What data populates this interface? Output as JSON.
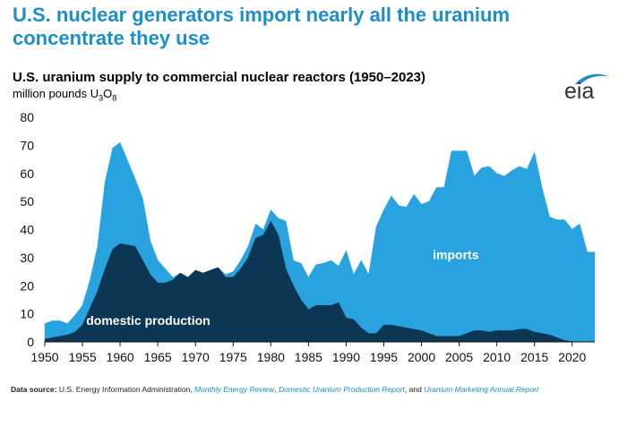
{
  "headline": "U.S. nuclear generators import nearly all the uranium concentrate they use",
  "logo": {
    "text": "eia"
  },
  "colors": {
    "headline": "#1a8fc9",
    "imports": "#29a3df",
    "domestic": "#0b3654",
    "axis": "#111111"
  },
  "source": {
    "label": "Data source:",
    "text": "U.S. Energy Information Administration,",
    "ref1": "Monthly Energy Review",
    "sep1": ",",
    "ref2": "Domestic Uranium Production Report",
    "sep2": ", and",
    "ref3": "Uranium Marketing Annual Report"
  },
  "chart_data": {
    "type": "area",
    "title": "U.S. uranium supply to commercial nuclear reactors (1950–2023)",
    "ylabel_prefix": "million pounds U",
    "ylabel_sub1": "3",
    "ylabel_mid": "O",
    "ylabel_sub2": "8",
    "xlim": [
      1950,
      2023
    ],
    "ylim": [
      0,
      80
    ],
    "yticks": [
      0,
      10,
      20,
      30,
      40,
      50,
      60,
      70,
      80
    ],
    "xticks": [
      1950,
      1955,
      1960,
      1965,
      1970,
      1975,
      1980,
      1985,
      1990,
      1995,
      2000,
      2005,
      2010,
      2015,
      2020
    ],
    "stacked": true,
    "x": [
      1950,
      1951,
      1952,
      1953,
      1954,
      1955,
      1956,
      1957,
      1958,
      1959,
      1960,
      1961,
      1962,
      1963,
      1964,
      1965,
      1966,
      1967,
      1968,
      1969,
      1970,
      1971,
      1972,
      1973,
      1974,
      1975,
      1976,
      1977,
      1978,
      1979,
      1980,
      1981,
      1982,
      1983,
      1984,
      1985,
      1986,
      1987,
      1988,
      1989,
      1990,
      1991,
      1992,
      1993,
      1994,
      1995,
      1996,
      1997,
      1998,
      1999,
      2000,
      2001,
      2002,
      2003,
      2004,
      2005,
      2006,
      2007,
      2008,
      2009,
      2010,
      2011,
      2012,
      2013,
      2014,
      2015,
      2016,
      2017,
      2018,
      2019,
      2020,
      2021,
      2022,
      2023
    ],
    "series": [
      {
        "name": "domestic production",
        "label": "domestic production",
        "values": [
          1,
          1.5,
          2,
          2.5,
          3.5,
          6,
          12,
          18,
          26,
          33,
          35,
          34.5,
          34,
          29,
          24,
          21,
          21,
          22,
          24.5,
          23,
          25.5,
          24.5,
          25.5,
          26.5,
          23,
          23,
          26,
          30,
          37,
          38,
          43,
          38,
          26,
          20,
          15,
          11.5,
          13,
          13,
          13,
          14,
          8.5,
          8,
          5,
          3,
          3,
          6,
          6,
          5.5,
          5,
          4.5,
          4,
          3,
          2,
          2,
          2,
          2,
          3,
          4,
          4,
          3.5,
          4,
          4,
          4,
          4.5,
          4.5,
          3.5,
          3,
          2.5,
          1.5,
          0.5,
          0.1,
          0,
          0,
          0
        ]
      },
      {
        "name": "imports",
        "label": "imports",
        "values": [
          5.5,
          6,
          5.5,
          4,
          6,
          7,
          10,
          16,
          31,
          36,
          36,
          30,
          24,
          22,
          12,
          8,
          5,
          1,
          0,
          0,
          0,
          0,
          0,
          0,
          1,
          2,
          3,
          4,
          5,
          2,
          4,
          6,
          17,
          9,
          13,
          11.5,
          14.5,
          15,
          16,
          13,
          24,
          16,
          24,
          21,
          38,
          41,
          46,
          43,
          43,
          48,
          45,
          47,
          53,
          53,
          66,
          66,
          65,
          55,
          58,
          59,
          56,
          55,
          57,
          58,
          57,
          64,
          52,
          42,
          42,
          43,
          40,
          42,
          32,
          32
        ]
      }
    ]
  }
}
